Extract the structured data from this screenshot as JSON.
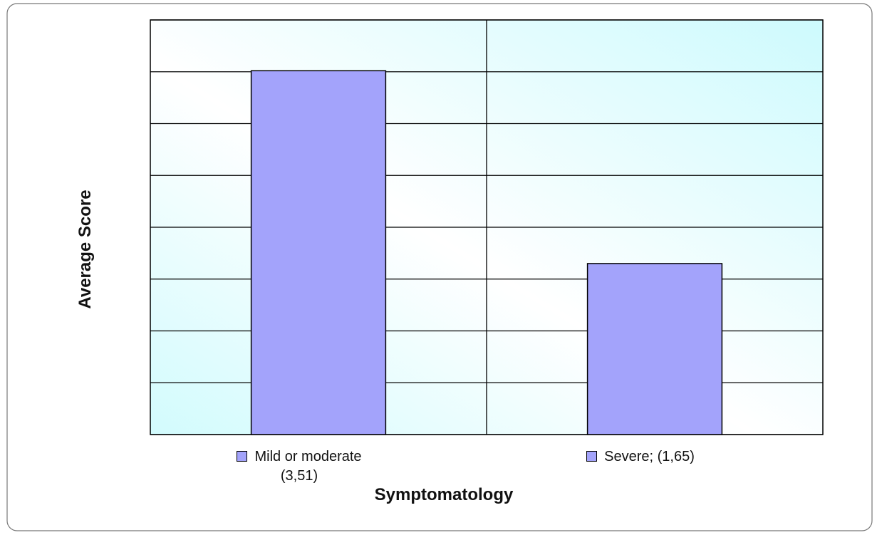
{
  "chart_data": {
    "type": "bar",
    "categories": [
      "Mild or moderate (3,51)",
      "Severe; (1,65)"
    ],
    "values": [
      3.51,
      1.65
    ],
    "color": "#a3a3fb",
    "ylim": [
      0,
      4
    ],
    "yticks": [
      0,
      0.5,
      1,
      1.5,
      2,
      2.5,
      3,
      3.5,
      4
    ],
    "grid": true,
    "xlabel": "Symptomatology",
    "ylabel": "Average Score"
  }
}
